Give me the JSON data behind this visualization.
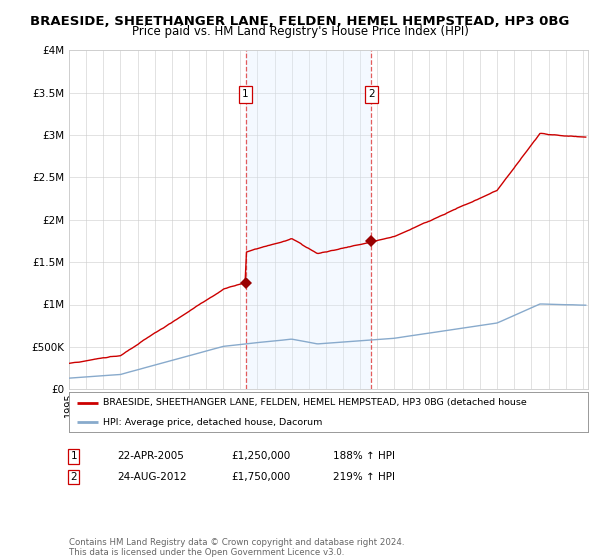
{
  "title": "BRAESIDE, SHEETHANGER LANE, FELDEN, HEMEL HEMPSTEAD, HP3 0BG",
  "subtitle": "Price paid vs. HM Land Registry's House Price Index (HPI)",
  "title_fontsize": 9.5,
  "subtitle_fontsize": 8.5,
  "ylabel_ticks": [
    "£0",
    "£500K",
    "£1M",
    "£1.5M",
    "£2M",
    "£2.5M",
    "£3M",
    "£3.5M",
    "£4M"
  ],
  "ylabel_values": [
    0,
    500000,
    1000000,
    1500000,
    2000000,
    2500000,
    3000000,
    3500000,
    4000000
  ],
  "ylim": [
    0,
    4000000
  ],
  "xlim_start": 1995.0,
  "xlim_end": 2025.3,
  "sale1_year": 2005.31,
  "sale1_price": 1250000,
  "sale2_year": 2012.65,
  "sale2_price": 1750000,
  "sale1_date": "22-APR-2005",
  "sale1_pct": "188% ↑ HPI",
  "sale2_date": "24-AUG-2012",
  "sale2_pct": "219% ↑ HPI",
  "line_color_property": "#cc0000",
  "line_color_hpi": "#88aacc",
  "shade_color": "#ddeeff",
  "legend_label_property": "BRAESIDE, SHEETHANGER LANE, FELDEN, HEMEL HEMPSTEAD, HP3 0BG (detached house",
  "legend_label_hpi": "HPI: Average price, detached house, Dacorum",
  "footer": "Contains HM Land Registry data © Crown copyright and database right 2024.\nThis data is licensed under the Open Government Licence v3.0.",
  "background_color": "#ffffff",
  "grid_color": "#cccccc"
}
